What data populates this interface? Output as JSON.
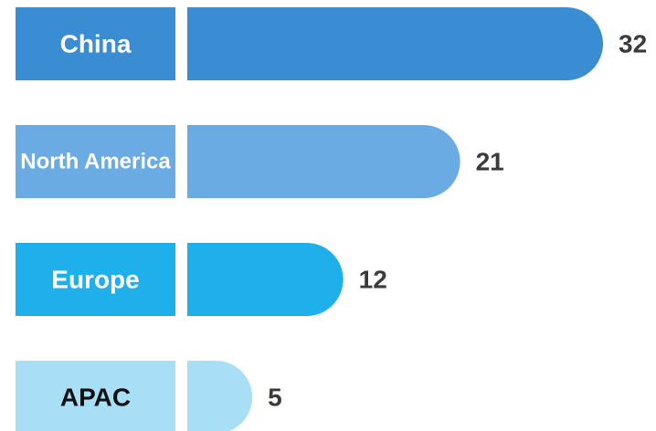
{
  "chart_data": {
    "type": "bar",
    "orientation": "horizontal",
    "categories": [
      "China",
      "North America",
      "Europe",
      "APAC"
    ],
    "values": [
      32,
      21,
      12,
      5
    ],
    "colors": [
      "#3a8dd2",
      "#6aabe3",
      "#1fb0ec",
      "#a9def7"
    ]
  }
}
